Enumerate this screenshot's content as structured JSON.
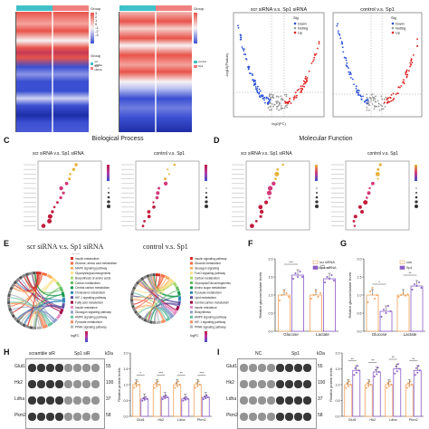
{
  "panel_letters": {
    "c": "C",
    "d": "D",
    "e": "E",
    "f": "F",
    "g": "G",
    "h": "H",
    "i": "I"
  },
  "heatmap": {
    "left_legend_title": "Group",
    "left_group_title": "Group",
    "left_group_entries": [
      "scr siRNA",
      "Sp1 siRNA"
    ],
    "right_legend_title": "Group",
    "right_group_entries": [
      "control",
      "Sp1"
    ],
    "scale_ticks": [
      "3",
      "2",
      "1",
      "0",
      "-1",
      "-2",
      "-3"
    ]
  },
  "volcano": {
    "left_title": "scr siRNA v.s. Sp1 siRNA",
    "right_title": "control v.s. Sp1",
    "xlabel": "log2(FC)",
    "ylabel": "-log10(Pvalue)",
    "legend_title": "Sig",
    "legend_entries": [
      "Down",
      "NotSig",
      "Up"
    ],
    "colors": {
      "down": "#2a4fd6",
      "notsig": "#9a9a9a",
      "up": "#e02020"
    }
  },
  "panel_c": {
    "title": "Biological Process",
    "left_subtitle": "scr siRNA v.s. Sp1 siRNA",
    "right_subtitle": "control v.s. Sp1"
  },
  "panel_d": {
    "title": "Molecular Function",
    "left_subtitle": "scr siRNA v.s. Sp1 siRNA",
    "right_subtitle": "control v.s. Sp1"
  },
  "panel_e": {
    "left_title": "scr siRNA v.s. Sp1 siRNA",
    "right_title": "control v.s. Sp1",
    "legend_title": "Terms",
    "legend_entries": [
      "Insulin metabolism",
      "Glucose, amino acid metabolism",
      "MAPK signaling pathway",
      "Glycolysis/gluconeogenesis",
      "Biosynthesis of amino acids",
      "Carbon metabolism",
      "Central carbon metabolism",
      "Cholesterol metabolism",
      "HIF-1 signaling pathway",
      "Fatty acid metabolism",
      "Insulin resistance",
      "Glucagon signaling pathway",
      "AMPK signaling pathway",
      "Pyruvate metabolism",
      "PPAR signaling pathway"
    ],
    "right_legend_entries": [
      "Insulin signaling pathway",
      "Glucose metabolism",
      "Glucagon signaling",
      "FoxO signaling pathway",
      "Carbon metabolism",
      "Glycolysis/Gluconeogenesis",
      "Amino sugar metabolism",
      "Pyruvate metabolism",
      "Lipid metabolism",
      "Central carbon metabolism",
      "Insulin resistance",
      "Biosynthesis",
      "AMPK signaling pathway",
      "HIF-1 signaling pathway",
      "PPAR signaling pathway"
    ],
    "logfc_label": "logFC"
  },
  "colors": {
    "scr": "#f0a25a",
    "sp1": "#8a5cc7",
    "con": "#f0a25a",
    "heat_red": "#e8534a",
    "heat_blue": "#3a4fd1",
    "heat_white": "#f7f2f2",
    "chord": [
      "#d73027",
      "#f46d43",
      "#fdae61",
      "#fee08b",
      "#a6d96a",
      "#66bd63",
      "#1a9850",
      "#3288bd",
      "#5e4fa2",
      "#9e0142",
      "#e78ac3",
      "#8da0cb",
      "#66c2a5",
      "#fc8d62",
      "#b3b3b3"
    ]
  },
  "chart_data": [
    {
      "panel": "F",
      "type": "bar",
      "categories": [
        "Glucose",
        "Lactate"
      ],
      "ylabel": "Relative glucose/lactate levels",
      "ylim": [
        0,
        2.0
      ],
      "yticks": [
        "0.0",
        "0.5",
        "1.0",
        "1.5",
        "2.0"
      ],
      "series": [
        {
          "name": "scr siRNA",
          "values": [
            1.0,
            1.0
          ],
          "points": [
            [
              0.85,
              1.0,
              1.1,
              1.05,
              0.95
            ],
            [
              0.9,
              1.0,
              1.1,
              0.95,
              1.05
            ]
          ]
        },
        {
          "name": "Sp1 siRNA",
          "values": [
            1.55,
            1.45
          ],
          "points": [
            [
              1.45,
              1.6,
              1.5,
              1.65,
              1.5
            ],
            [
              1.35,
              1.5,
              1.45,
              1.55,
              1.4
            ]
          ]
        }
      ],
      "significance": [
        "***",
        "***"
      ],
      "legend_position": "top-right"
    },
    {
      "panel": "G",
      "type": "bar",
      "categories": [
        "Glucose",
        "Lactate"
      ],
      "ylabel": "Relative glucose/lactate levels",
      "ylim": [
        0,
        2.0
      ],
      "yticks": [
        "0.0",
        "0.5",
        "1.0",
        "1.5",
        "2.0"
      ],
      "series": [
        {
          "name": "con",
          "values": [
            1.0,
            1.0
          ],
          "points": [
            [
              0.8,
              1.1,
              1.2,
              0.9,
              1.0
            ],
            [
              0.95,
              1.0,
              1.05,
              0.98,
              1.02
            ]
          ]
        },
        {
          "name": "Sp1",
          "values": [
            0.55,
            1.25
          ],
          "points": [
            [
              0.4,
              0.6,
              0.5,
              0.7,
              0.55
            ],
            [
              1.15,
              1.3,
              1.25,
              1.35,
              1.2
            ]
          ]
        }
      ],
      "significance": [
        "*",
        "**"
      ],
      "legend_position": "top-right"
    },
    {
      "panel": "H",
      "type": "bar",
      "categories": [
        "Glut1",
        "Hk2",
        "Ldha",
        "Pkm2"
      ],
      "ylabel": "Relative protein levels",
      "ylim": [
        0,
        2.0
      ],
      "yticks": [
        "0.0",
        "0.5",
        "1.0",
        "1.5",
        "2.0"
      ],
      "series": [
        {
          "name": "scrambled siR",
          "values": [
            1.0,
            1.0,
            1.0,
            1.0
          ]
        },
        {
          "name": "Sp1 siR",
          "values": [
            0.55,
            0.6,
            0.55,
            0.6
          ]
        }
      ],
      "significance": [
        "*",
        "***",
        "**",
        "***"
      ]
    },
    {
      "panel": "I",
      "type": "bar",
      "categories": [
        "Glut1",
        "Hk2",
        "Ldha",
        "Pkm2"
      ],
      "ylabel": "Relative protein levels",
      "ylim": [
        0,
        2.0
      ],
      "yticks": [
        "0.0",
        "0.5",
        "1.0",
        "1.5",
        "2.0"
      ],
      "series": [
        {
          "name": "NC",
          "values": [
            1.0,
            1.0,
            1.0,
            1.0
          ]
        },
        {
          "name": "Sp1",
          "values": [
            1.45,
            1.4,
            1.5,
            1.45
          ]
        }
      ],
      "significance": [
        "**",
        "**",
        "**",
        "**"
      ]
    }
  ],
  "western_h": {
    "lane_groups": [
      "scramble siR",
      "Sp1 siR"
    ],
    "kda_label": "kDa",
    "rows": [
      {
        "label": "Glut1",
        "kda": "55"
      },
      {
        "label": "Hk2",
        "kda": "100"
      },
      {
        "label": "Ldha",
        "kda": "37"
      },
      {
        "label": "Pkm2",
        "kda": "58"
      }
    ]
  },
  "western_i": {
    "lane_groups": [
      "NC",
      "Sp1"
    ],
    "kda_label": "kDa",
    "rows": [
      {
        "label": "Glut1",
        "kda": "55"
      },
      {
        "label": "Hk2",
        "kda": "100"
      },
      {
        "label": "Ldha",
        "kda": "37"
      },
      {
        "label": "Pkm2",
        "kda": "58"
      }
    ]
  }
}
